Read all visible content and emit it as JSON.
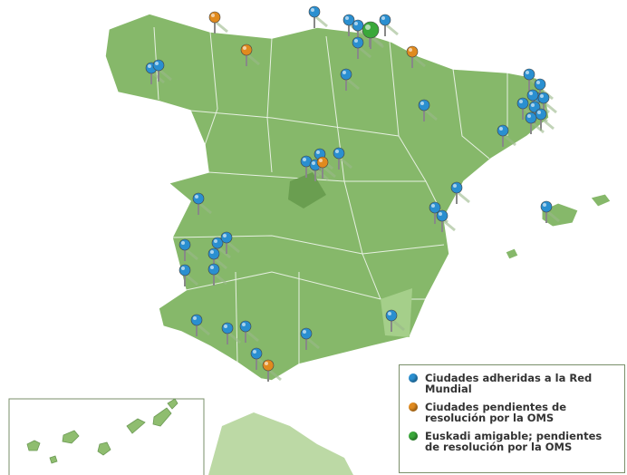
{
  "legend": {
    "items": [
      {
        "label": "Ciudades adheridas a la Red Mundial",
        "color": "#2a8fd0"
      },
      {
        "label": "Ciudades pendientes de resolución por la OMS",
        "color": "#e08a1e"
      },
      {
        "label": "Euskadi amigable; pendientes de resolución por la OMS",
        "color": "#3aa83a"
      }
    ]
  }
}
